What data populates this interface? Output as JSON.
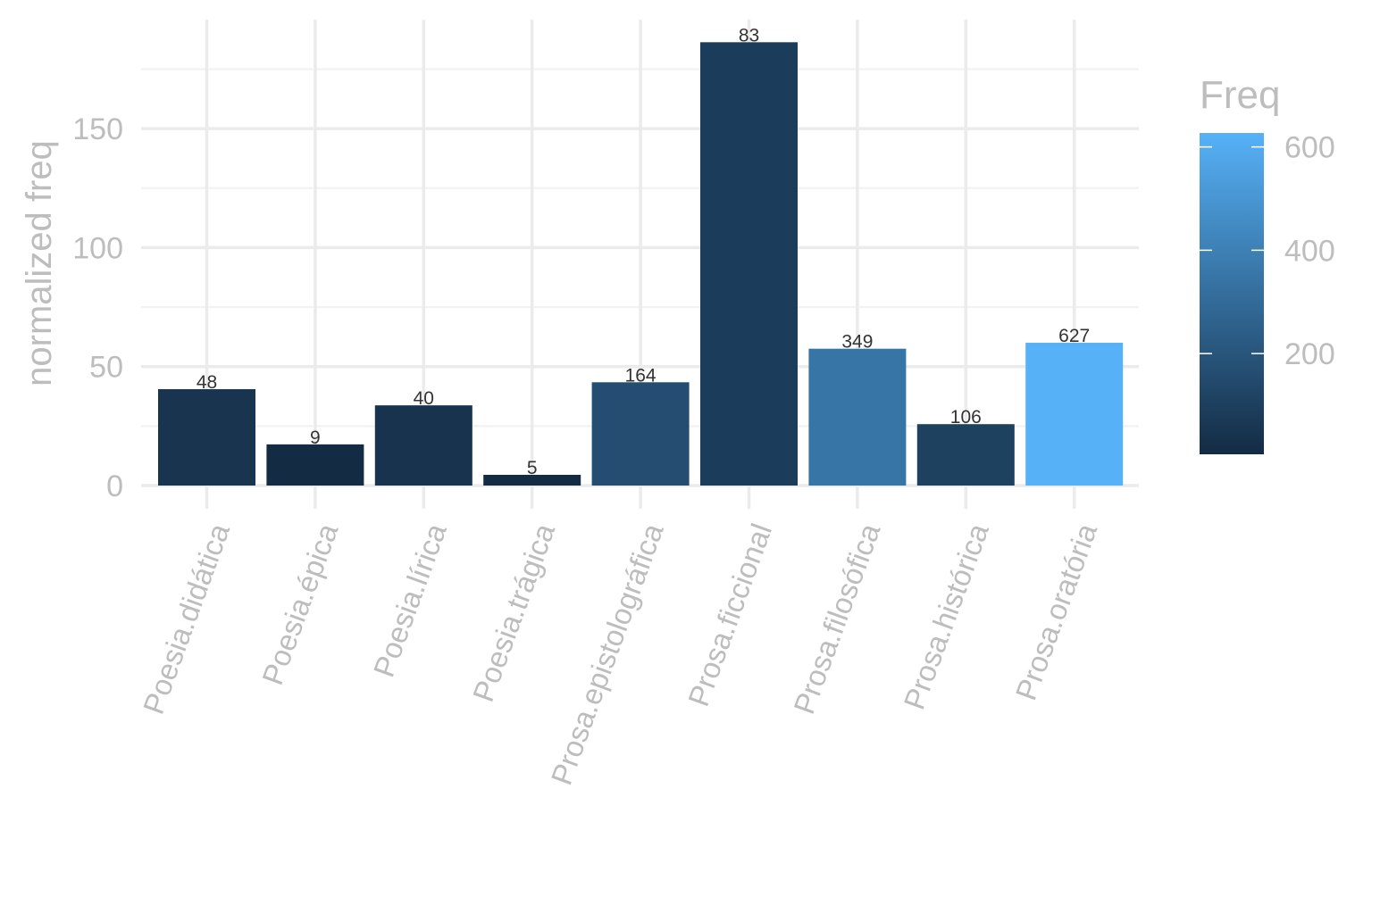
{
  "chart_data": {
    "type": "bar",
    "title": "",
    "xlabel": "",
    "ylabel": "normalized freq",
    "categories": [
      "Poesia.didática",
      "Poesia.épica",
      "Poesia.lírica",
      "Poesia.trágica",
      "Prosa.epistolográfica",
      "Prosa.ficcional",
      "Prosa.filosófica",
      "Prosa.histórica",
      "Prosa.oratória"
    ],
    "values": [
      40.5,
      17.3,
      33.7,
      4.5,
      43.4,
      186.3,
      57.5,
      25.8,
      60.0
    ],
    "labels": [
      "48",
      "9",
      "40",
      "5",
      "164",
      "83",
      "349",
      "106",
      "627"
    ],
    "fill_values": [
      48,
      9,
      40,
      5,
      164,
      83,
      349,
      106,
      627
    ],
    "ylim": [
      -8,
      195
    ],
    "yticks": [
      0,
      50,
      100,
      150
    ],
    "grid": true,
    "legend": {
      "title": "Freq",
      "position": "right",
      "range": [
        5,
        627
      ],
      "ticks": [
        200,
        400,
        600
      ],
      "color_low": "#132b43",
      "color_high": "#56b1f7"
    }
  }
}
